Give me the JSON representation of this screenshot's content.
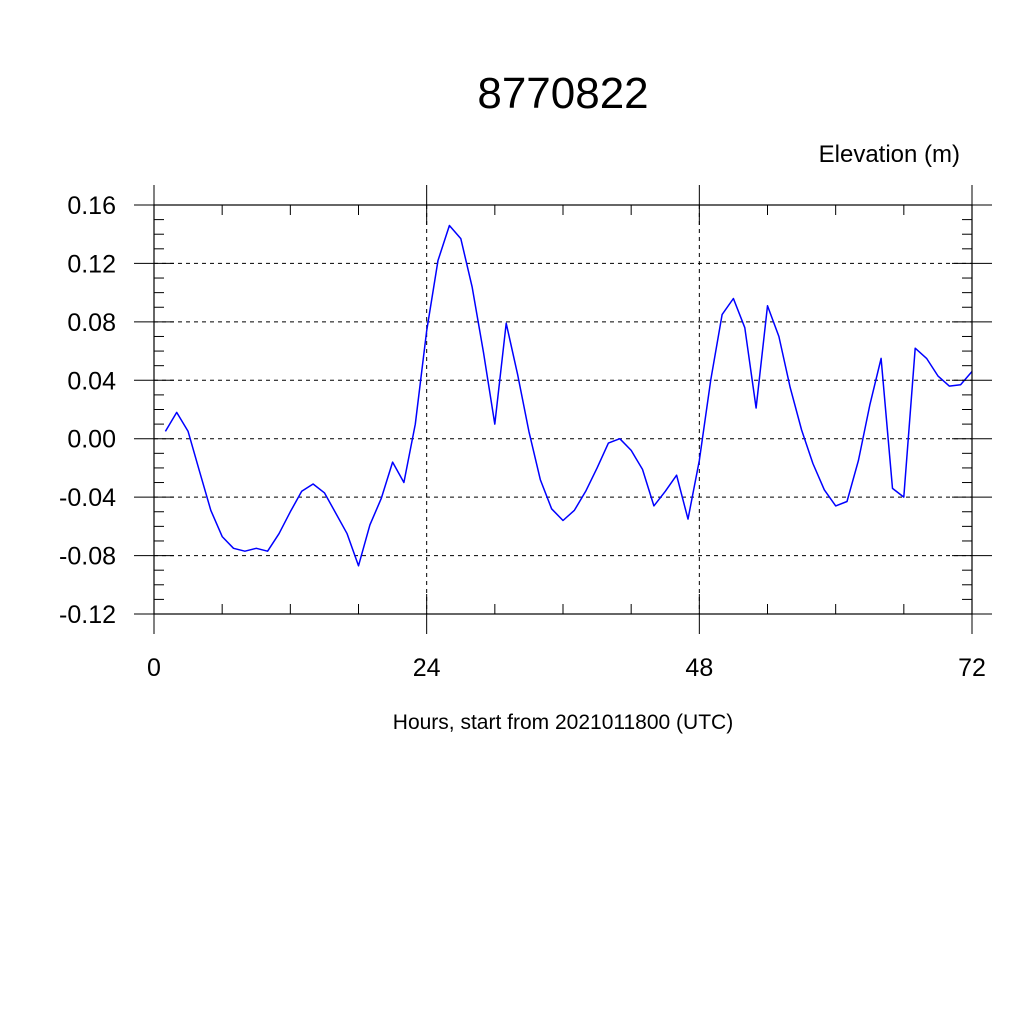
{
  "chart_data": {
    "type": "line",
    "title": "8770822",
    "ylabel": "Elevation (m)",
    "xlabel": "Hours, start from 2021011800 (UTC)",
    "xlim": [
      0,
      72
    ],
    "ylim": [
      -0.12,
      0.16
    ],
    "x_ticks": [
      0,
      24,
      48,
      72
    ],
    "x_tick_labels": [
      "0",
      "24",
      "48",
      "72"
    ],
    "y_ticks": [
      -0.12,
      -0.08,
      -0.04,
      0.0,
      0.04,
      0.08,
      0.12,
      0.16
    ],
    "y_tick_labels": [
      "-0.12",
      "-0.08",
      "-0.04",
      "0.00",
      "0.04",
      "0.08",
      "0.12",
      "0.16"
    ],
    "x_minor_step": 6,
    "y_minor_step": 0.01,
    "grid": true,
    "grid_style": "dashed",
    "legend": "none",
    "series": [
      {
        "color": "#0000ff",
        "x": [
          1,
          2,
          3,
          4,
          5,
          6,
          7,
          8,
          9,
          10,
          11,
          12,
          13,
          14,
          15,
          16,
          17,
          18,
          19,
          20,
          21,
          22,
          23,
          24,
          25,
          26,
          27,
          28,
          29,
          30,
          31,
          32,
          33,
          34,
          35,
          36,
          37,
          38,
          39,
          40,
          41,
          42,
          43,
          44,
          45,
          46,
          47,
          48,
          49,
          50,
          51,
          52,
          53,
          54,
          55,
          56,
          57,
          58,
          59,
          60,
          61,
          62,
          63,
          64,
          65,
          66,
          67,
          68,
          69,
          70,
          71,
          72
        ],
        "y": [
          0.005,
          0.018,
          0.005,
          -0.022,
          -0.049,
          -0.067,
          -0.075,
          -0.077,
          -0.075,
          -0.077,
          -0.065,
          -0.05,
          -0.036,
          -0.031,
          -0.037,
          -0.051,
          -0.065,
          -0.087,
          -0.059,
          -0.041,
          -0.016,
          -0.03,
          0.01,
          0.074,
          0.122,
          0.146,
          0.137,
          0.104,
          0.059,
          0.01,
          0.079,
          0.044,
          0.005,
          -0.028,
          -0.048,
          -0.056,
          -0.049,
          -0.036,
          -0.02,
          -0.003,
          0.0,
          -0.008,
          -0.021,
          -0.046,
          -0.036,
          -0.025,
          -0.055,
          -0.015,
          0.04,
          0.085,
          0.096,
          0.076,
          0.021,
          0.091,
          0.07,
          0.035,
          0.006,
          -0.017,
          -0.035,
          -0.046,
          -0.043,
          -0.015,
          0.023,
          0.055,
          -0.034,
          -0.04,
          0.062,
          0.055,
          0.043,
          0.036,
          0.037,
          0.046
        ]
      }
    ]
  }
}
